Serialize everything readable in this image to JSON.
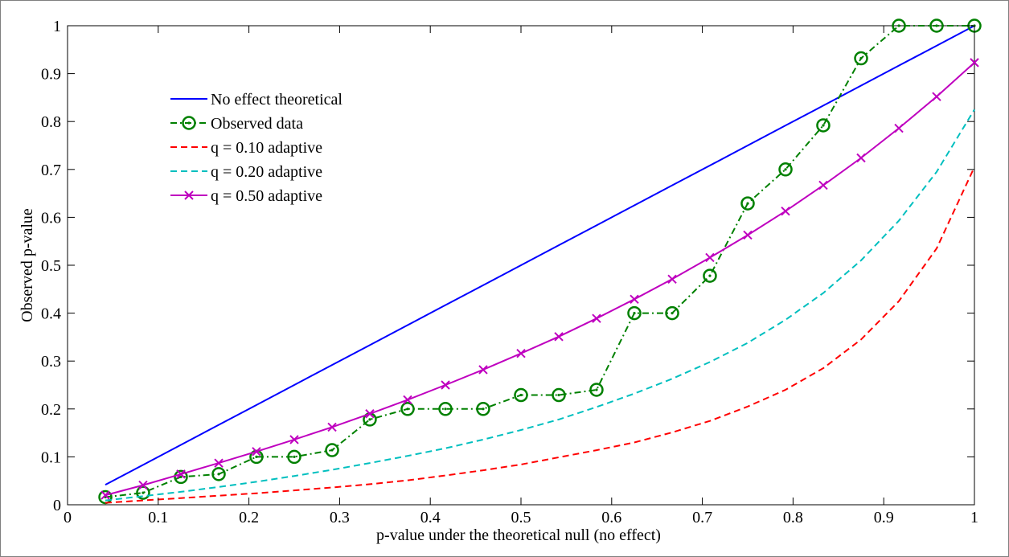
{
  "chart_data": {
    "type": "line",
    "title": "",
    "xlabel": "p-value under the theoretical null (no effect)",
    "ylabel": "Observed p-value",
    "xlim": [
      0,
      1
    ],
    "ylim": [
      0,
      1
    ],
    "xticks": [
      0,
      0.1,
      0.2,
      0.3,
      0.4,
      0.5,
      0.6,
      0.7,
      0.8,
      0.9,
      1
    ],
    "xtick_labels": [
      "0",
      "0.1",
      "0.2",
      "0.3",
      "0.4",
      "0.5",
      "0.6",
      "0.7",
      "0.8",
      "0.9",
      "1"
    ],
    "yticks": [
      0,
      0.1,
      0.2,
      0.3,
      0.4,
      0.5,
      0.6,
      0.7,
      0.8,
      0.9,
      1
    ],
    "ytick_labels": [
      "0",
      "0.1",
      "0.2",
      "0.3",
      "0.4",
      "0.5",
      "0.6",
      "0.7",
      "0.8",
      "0.9",
      "1"
    ],
    "grid": false,
    "legend_position": "upper-left",
    "x": [
      0.0417,
      0.0833,
      0.125,
      0.1667,
      0.2083,
      0.25,
      0.2917,
      0.3333,
      0.375,
      0.4167,
      0.4583,
      0.5,
      0.5417,
      0.5833,
      0.625,
      0.6667,
      0.7083,
      0.75,
      0.7917,
      0.8333,
      0.875,
      0.9167,
      0.9583,
      1.0
    ],
    "series": [
      {
        "name": "No effect theoretical",
        "color": "#0000ff",
        "style": "solid",
        "marker": "none",
        "values": [
          0.0417,
          0.0833,
          0.125,
          0.1667,
          0.2083,
          0.25,
          0.2917,
          0.3333,
          0.375,
          0.4167,
          0.4583,
          0.5,
          0.5417,
          0.5833,
          0.625,
          0.6667,
          0.7083,
          0.75,
          0.7917,
          0.8333,
          0.875,
          0.9167,
          0.9583,
          1.0
        ]
      },
      {
        "name": "Observed data",
        "color": "#008000",
        "style": "dashdot",
        "marker": "circle-dot",
        "values": [
          0.016,
          0.025,
          0.058,
          0.064,
          0.1,
          0.1,
          0.114,
          0.178,
          0.2,
          0.2,
          0.2,
          0.229,
          0.229,
          0.24,
          0.4,
          0.4,
          0.478,
          0.629,
          0.7,
          0.792,
          0.932,
          1.0,
          1.0,
          1.0
        ]
      },
      {
        "name": "q = 0.10 adaptive",
        "color": "#ff0000",
        "style": "dashed",
        "marker": "none",
        "values": [
          0.004,
          0.009,
          0.014,
          0.019,
          0.024,
          0.03,
          0.036,
          0.043,
          0.051,
          0.061,
          0.072,
          0.084,
          0.099,
          0.114,
          0.13,
          0.151,
          0.175,
          0.205,
          0.24,
          0.285,
          0.345,
          0.425,
          0.535,
          0.705
        ]
      },
      {
        "name": "q = 0.20 adaptive",
        "color": "#00bfbf",
        "style": "dashed",
        "marker": "none",
        "values": [
          0.009,
          0.018,
          0.027,
          0.037,
          0.048,
          0.06,
          0.073,
          0.087,
          0.102,
          0.118,
          0.136,
          0.156,
          0.178,
          0.204,
          0.232,
          0.263,
          0.298,
          0.338,
          0.386,
          0.442,
          0.51,
          0.593,
          0.695,
          0.825
        ]
      },
      {
        "name": "q = 0.50 adaptive",
        "color": "#bf00bf",
        "style": "solid",
        "marker": "x",
        "values": [
          0.02,
          0.041,
          0.064,
          0.087,
          0.111,
          0.136,
          0.162,
          0.19,
          0.219,
          0.25,
          0.282,
          0.316,
          0.351,
          0.389,
          0.429,
          0.471,
          0.516,
          0.563,
          0.613,
          0.667,
          0.724,
          0.786,
          0.852,
          0.923
        ]
      }
    ]
  }
}
